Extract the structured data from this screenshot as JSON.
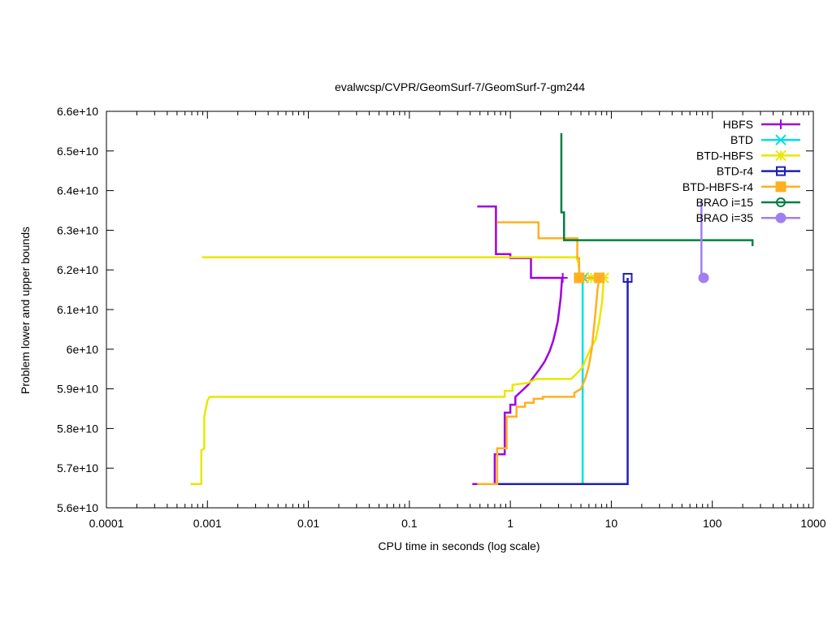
{
  "chart_data": {
    "type": "line",
    "title": "evalwcsp/CVPR/GeomSurf-7/GeomSurf-7-gm244",
    "xlabel": "CPU time in seconds (log scale)",
    "ylabel": "Problem lower and upper bounds",
    "x_scale": "log",
    "xlim": [
      0.0001,
      1000
    ],
    "ylim": [
      56000000000.0,
      66000000000.0
    ],
    "x_ticks": [
      {
        "value": 0.0001,
        "label": "0.0001"
      },
      {
        "value": 0.001,
        "label": "0.001"
      },
      {
        "value": 0.01,
        "label": "0.01"
      },
      {
        "value": 0.1,
        "label": "0.1"
      },
      {
        "value": 1,
        "label": "1"
      },
      {
        "value": 10,
        "label": "10"
      },
      {
        "value": 100,
        "label": "100"
      },
      {
        "value": 1000,
        "label": "1000"
      }
    ],
    "y_ticks": [
      {
        "value": 56000000000.0,
        "label": "5.6e+10"
      },
      {
        "value": 57000000000.0,
        "label": "5.7e+10"
      },
      {
        "value": 58000000000.0,
        "label": "5.8e+10"
      },
      {
        "value": 59000000000.0,
        "label": "5.9e+10"
      },
      {
        "value": 60000000000.0,
        "label": "6e+10"
      },
      {
        "value": 61000000000.0,
        "label": "6.1e+10"
      },
      {
        "value": 62000000000.0,
        "label": "6.2e+10"
      },
      {
        "value": 63000000000.0,
        "label": "6.3e+10"
      },
      {
        "value": 64000000000.0,
        "label": "6.4e+10"
      },
      {
        "value": 65000000000.0,
        "label": "6.5e+10"
      },
      {
        "value": 66000000000.0,
        "label": "6.6e+10"
      }
    ],
    "grid": false,
    "legend_position": "top-right",
    "series": [
      {
        "name": "HBFS",
        "color": "#a000e0",
        "marker": "plus",
        "line": [
          [
            0.42,
            56600000000.0
          ],
          [
            0.7,
            56600000000.0
          ],
          [
            0.7,
            57350000000.0
          ],
          [
            0.88,
            57350000000.0
          ],
          [
            0.88,
            58400000000.0
          ],
          [
            1.0,
            58400000000.0
          ],
          [
            1.0,
            58600000000.0
          ],
          [
            1.12,
            58600000000.0
          ],
          [
            1.12,
            58800000000.0
          ],
          [
            1.3,
            58950000000.0
          ],
          [
            1.5,
            59100000000.0
          ],
          [
            1.7,
            59300000000.0
          ],
          [
            1.95,
            59500000000.0
          ],
          [
            2.2,
            59700000000.0
          ],
          [
            2.45,
            59950000000.0
          ],
          [
            2.65,
            60200000000.0
          ],
          [
            2.8,
            60450000000.0
          ],
          [
            2.95,
            60700000000.0
          ],
          [
            3.05,
            61000000000.0
          ],
          [
            3.15,
            61300000000.0
          ],
          [
            3.25,
            61800000000.0
          ],
          [
            3.3,
            61800000000.0
          ]
        ],
        "upper": [
          [
            0.47,
            63600000000.0
          ],
          [
            0.72,
            63600000000.0
          ],
          [
            0.72,
            62400000000.0
          ],
          [
            1.0,
            62400000000.0
          ],
          [
            1.0,
            62300000000.0
          ],
          [
            1.6,
            62300000000.0
          ],
          [
            1.6,
            61800000000.0
          ],
          [
            3.3,
            61800000000.0
          ]
        ],
        "markers": [
          [
            3.3,
            61800000000.0
          ]
        ]
      },
      {
        "name": "BTD",
        "color": "#00e0e0",
        "marker": "cross",
        "line": [
          [
            5.2,
            56600000000.0
          ],
          [
            5.2,
            61800000000.0
          ]
        ],
        "upper": [
          [
            5.2,
            61800000000.0
          ],
          [
            5.4,
            61800000000.0
          ]
        ],
        "markers": [
          [
            5.3,
            61800000000.0
          ]
        ]
      },
      {
        "name": "BTD-HBFS",
        "color": "#e8e800",
        "marker": "star",
        "line": [
          [
            0.00068,
            56600000000.0
          ],
          [
            0.00087,
            56600000000.0
          ],
          [
            0.00087,
            57450000000.0
          ],
          [
            0.00093,
            57500000000.0
          ],
          [
            0.00093,
            58300000000.0
          ],
          [
            0.001,
            58700000000.0
          ],
          [
            0.00105,
            58800000000.0
          ],
          [
            0.88,
            58800000000.0
          ],
          [
            0.88,
            58950000000.0
          ],
          [
            1.05,
            58950000000.0
          ],
          [
            1.05,
            59100000000.0
          ],
          [
            1.5,
            59150000000.0
          ],
          [
            1.8,
            59250000000.0
          ],
          [
            4.0,
            59250000000.0
          ],
          [
            4.6,
            59400000000.0
          ],
          [
            5.2,
            59550000000.0
          ],
          [
            5.7,
            59800000000.0
          ],
          [
            6.2,
            60000000000.0
          ],
          [
            7.0,
            60250000000.0
          ],
          [
            7.6,
            60700000000.0
          ],
          [
            8.1,
            61200000000.0
          ],
          [
            8.4,
            61800000000.0
          ]
        ],
        "upper": [
          [
            0.00088,
            62320000000.0
          ],
          [
            4.5,
            62320000000.0
          ],
          [
            4.7,
            62200000000.0
          ],
          [
            4.8,
            62000000000.0
          ],
          [
            4.9,
            61800000000.0
          ],
          [
            8.5,
            61800000000.0
          ]
        ],
        "markers": [
          [
            6.3,
            61800000000.0
          ],
          [
            8.4,
            61800000000.0
          ]
        ]
      },
      {
        "name": "BTD-r4",
        "color": "#2020b0",
        "marker": "square",
        "line": [
          [
            0.6,
            56600000000.0
          ],
          [
            14.5,
            56600000000.0
          ],
          [
            14.5,
            61800000000.0
          ]
        ],
        "upper": [
          [
            14.5,
            61800000000.0
          ],
          [
            14.5,
            61800000000.0
          ]
        ],
        "markers": [
          [
            14.5,
            61800000000.0
          ]
        ]
      },
      {
        "name": "BTD-HBFS-r4",
        "color": "#ffb020",
        "marker": "filled-square",
        "line": [
          [
            0.47,
            56600000000.0
          ],
          [
            0.74,
            56600000000.0
          ],
          [
            0.74,
            57500000000.0
          ],
          [
            0.92,
            57500000000.0
          ],
          [
            0.92,
            58300000000.0
          ],
          [
            1.15,
            58300000000.0
          ],
          [
            1.15,
            58550000000.0
          ],
          [
            1.4,
            58550000000.0
          ],
          [
            1.4,
            58650000000.0
          ],
          [
            1.7,
            58650000000.0
          ],
          [
            1.7,
            58750000000.0
          ],
          [
            2.1,
            58750000000.0
          ],
          [
            2.1,
            58800000000.0
          ],
          [
            4.3,
            58800000000.0
          ],
          [
            4.3,
            58900000000.0
          ],
          [
            5.0,
            59000000000.0
          ],
          [
            5.6,
            59300000000.0
          ],
          [
            6.0,
            59600000000.0
          ],
          [
            6.4,
            60000000000.0
          ],
          [
            6.7,
            60500000000.0
          ],
          [
            7.0,
            61000000000.0
          ],
          [
            7.3,
            61500000000.0
          ],
          [
            7.6,
            61800000000.0
          ]
        ],
        "upper": [
          [
            0.74,
            63200000000.0
          ],
          [
            1.9,
            63200000000.0
          ],
          [
            1.9,
            62800000000.0
          ],
          [
            4.6,
            62800000000.0
          ],
          [
            4.6,
            62300000000.0
          ],
          [
            4.8,
            62300000000.0
          ],
          [
            4.8,
            61800000000.0
          ],
          [
            7.6,
            61800000000.0
          ]
        ],
        "markers": [
          [
            4.8,
            61800000000.0
          ],
          [
            7.6,
            61800000000.0
          ]
        ]
      },
      {
        "name": "BRAO i=15",
        "color": "#008040",
        "marker": "circle",
        "line": [
          [
            3.2,
            65450000000.0
          ],
          [
            3.2,
            63450000000.0
          ],
          [
            3.4,
            63450000000.0
          ],
          [
            3.4,
            62750000000.0
          ],
          [
            250,
            62750000000.0
          ],
          [
            250,
            62600000000.0
          ]
        ],
        "upper": [],
        "markers": []
      },
      {
        "name": "BRAO i=35",
        "color": "#a080f0",
        "marker": "filled-circle",
        "line": [
          [
            78,
            63750000000.0
          ],
          [
            78,
            61800000000.0
          ],
          [
            82,
            61800000000.0
          ]
        ],
        "upper": [],
        "markers": [
          [
            82,
            61800000000.0
          ]
        ]
      }
    ]
  }
}
